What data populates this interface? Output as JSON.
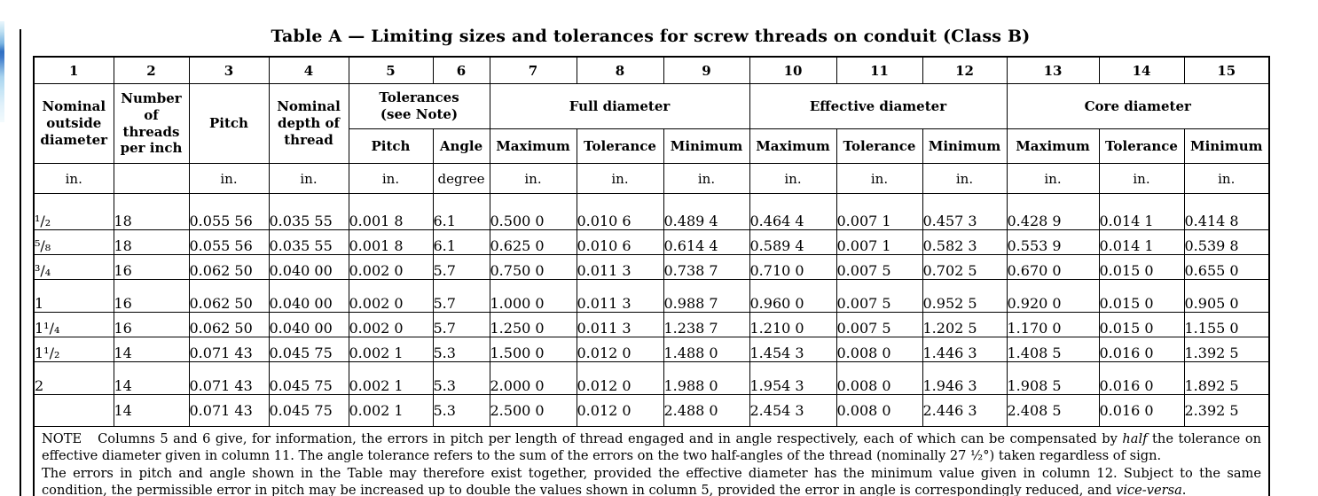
{
  "page": {
    "title": "Table A — Limiting sizes and tolerances for screw threads on conduit (Class B)"
  },
  "table": {
    "column_numbers": [
      "1",
      "2",
      "3",
      "4",
      "5",
      "6",
      "7",
      "8",
      "9",
      "10",
      "11",
      "12",
      "13",
      "14",
      "15"
    ],
    "headers": {
      "col1": "Nominal\noutside\ndiameter",
      "col2": "Number\nof\nthreads\nper inch",
      "col3": "Pitch",
      "col4": "Nominal\ndepth of\nthread",
      "tolerances_group": "Tolerances\n(see Note)",
      "tolerances_pitch": "Pitch",
      "tolerances_angle": "Angle",
      "full_diameter_group": "Full diameter",
      "effective_diameter_group": "Effective diameter",
      "core_diameter_group": "Core diameter",
      "maximum": "Maximum",
      "tolerance": "Tolerance",
      "minimum": "Minimum"
    },
    "units": [
      "in.",
      "",
      "in.",
      "in.",
      "in.",
      "degree",
      "in.",
      "in.",
      "in.",
      "in.",
      "in.",
      "in.",
      "in.",
      "in.",
      "in."
    ],
    "group_starts": [
      0,
      3,
      6
    ],
    "rows": [
      [
        "¹/₂",
        "18",
        "0.055 56",
        "0.035 55",
        "0.001 8",
        "6.1",
        "0.500 0",
        "0.010 6",
        "0.489 4",
        "0.464 4",
        "0.007 1",
        "0.457 3",
        "0.428 9",
        "0.014 1",
        "0.414 8"
      ],
      [
        "⁵/₈",
        "18",
        "0.055 56",
        "0.035 55",
        "0.001 8",
        "6.1",
        "0.625 0",
        "0.010 6",
        "0.614 4",
        "0.589 4",
        "0.007 1",
        "0.582 3",
        "0.553 9",
        "0.014 1",
        "0.539 8"
      ],
      [
        "³/₄",
        "16",
        "0.062 50",
        "0.040 00",
        "0.002 0",
        "5.7",
        "0.750 0",
        "0.011 3",
        "0.738 7",
        "0.710 0",
        "0.007 5",
        "0.702 5",
        "0.670 0",
        "0.015 0",
        "0.655 0"
      ],
      [
        "1",
        "16",
        "0.062 50",
        "0.040 00",
        "0.002 0",
        "5.7",
        "1.000 0",
        "0.011 3",
        "0.988 7",
        "0.960 0",
        "0.007 5",
        "0.952 5",
        "0.920 0",
        "0.015 0",
        "0.905 0"
      ],
      [
        "1¹/₄",
        "16",
        "0.062 50",
        "0.040 00",
        "0.002 0",
        "5.7",
        "1.250 0",
        "0.011 3",
        "1.238 7",
        "1.210 0",
        "0.007 5",
        "1.202 5",
        "1.170 0",
        "0.015 0",
        "1.155 0"
      ],
      [
        "1¹/₂",
        "14",
        "0.071 43",
        "0.045 75",
        "0.002 1",
        "5.3",
        "1.500 0",
        "0.012 0",
        "1.488 0",
        "1.454 3",
        "0.008 0",
        "1.446 3",
        "1.408 5",
        "0.016 0",
        "1.392 5"
      ],
      [
        "2",
        "14",
        "0.071 43",
        "0.045 75",
        "0.002 1",
        "5.3",
        "2.000 0",
        "0.012 0",
        "1.988 0",
        "1.954 3",
        "0.008 0",
        "1.946 3",
        "1.908 5",
        "0.016 0",
        "1.892 5"
      ],
      [
        "",
        "14",
        "0.071 43",
        "0.045 75",
        "0.002 1",
        "5.3",
        "2.500 0",
        "0.012 0",
        "2.488 0",
        "2.454 3",
        "0.008 0",
        "2.446 3",
        "2.408 5",
        "0.016 0",
        "2.392 5"
      ]
    ]
  },
  "note": {
    "label": "NOTE",
    "p1": {
      "pre": "Columns 5 and 6 give, for information, the errors in pitch per length of thread engaged and in angle respectively, each of which can be compensated by ",
      "italic": "half",
      "post": " the tolerance on effective diameter given in column 11. The angle tolerance refers to the sum of the errors on the two half-angles of the thread (nominally 27 ½°) taken regardless of sign."
    },
    "p2": {
      "pre": "The errors in pitch and angle shown in the Table may therefore exist together, provided the effective diameter has the minimum value given in column 12. Subject to the same condition, the permissible error in pitch may be increased up to double the values shown in column 5, provided the error in angle is correspondingly reduced, and ",
      "italic": "vice-versa",
      "post": "."
    }
  }
}
